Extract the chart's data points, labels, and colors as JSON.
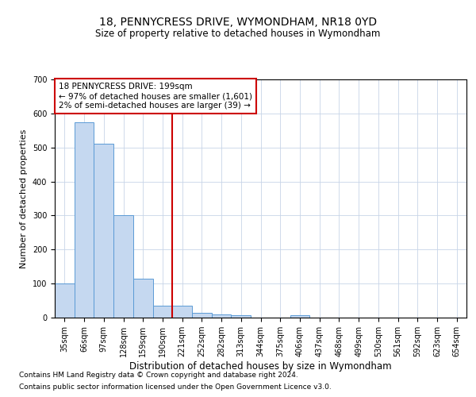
{
  "title": "18, PENNYCRESS DRIVE, WYMONDHAM, NR18 0YD",
  "subtitle": "Size of property relative to detached houses in Wymondham",
  "xlabel": "Distribution of detached houses by size in Wymondham",
  "ylabel": "Number of detached properties",
  "footer_line1": "Contains HM Land Registry data © Crown copyright and database right 2024.",
  "footer_line2": "Contains public sector information licensed under the Open Government Licence v3.0.",
  "bin_labels": [
    "35sqm",
    "66sqm",
    "97sqm",
    "128sqm",
    "159sqm",
    "190sqm",
    "221sqm",
    "252sqm",
    "282sqm",
    "313sqm",
    "344sqm",
    "375sqm",
    "406sqm",
    "437sqm",
    "468sqm",
    "499sqm",
    "530sqm",
    "561sqm",
    "592sqm",
    "623sqm",
    "654sqm"
  ],
  "bar_heights": [
    100,
    575,
    510,
    300,
    115,
    35,
    35,
    15,
    10,
    7,
    0,
    0,
    7,
    0,
    0,
    0,
    0,
    0,
    0,
    0,
    0
  ],
  "bar_color": "#c5d8f0",
  "bar_edge_color": "#5b9bd5",
  "property_line_x": 5.5,
  "property_line_color": "#cc0000",
  "annotation_text_line1": "18 PENNYCRESS DRIVE: 199sqm",
  "annotation_text_line2": "← 97% of detached houses are smaller (1,601)",
  "annotation_text_line3": "2% of semi-detached houses are larger (39) →",
  "annotation_font_size": 7.5,
  "title_fontsize": 10,
  "subtitle_fontsize": 8.5,
  "xlabel_fontsize": 8.5,
  "ylabel_fontsize": 8,
  "tick_fontsize": 7,
  "ylim": [
    0,
    700
  ],
  "yticks": [
    0,
    100,
    200,
    300,
    400,
    500,
    600,
    700
  ],
  "background_color": "#ffffff",
  "grid_color": "#c8d4e8",
  "footer_fontsize": 6.5
}
